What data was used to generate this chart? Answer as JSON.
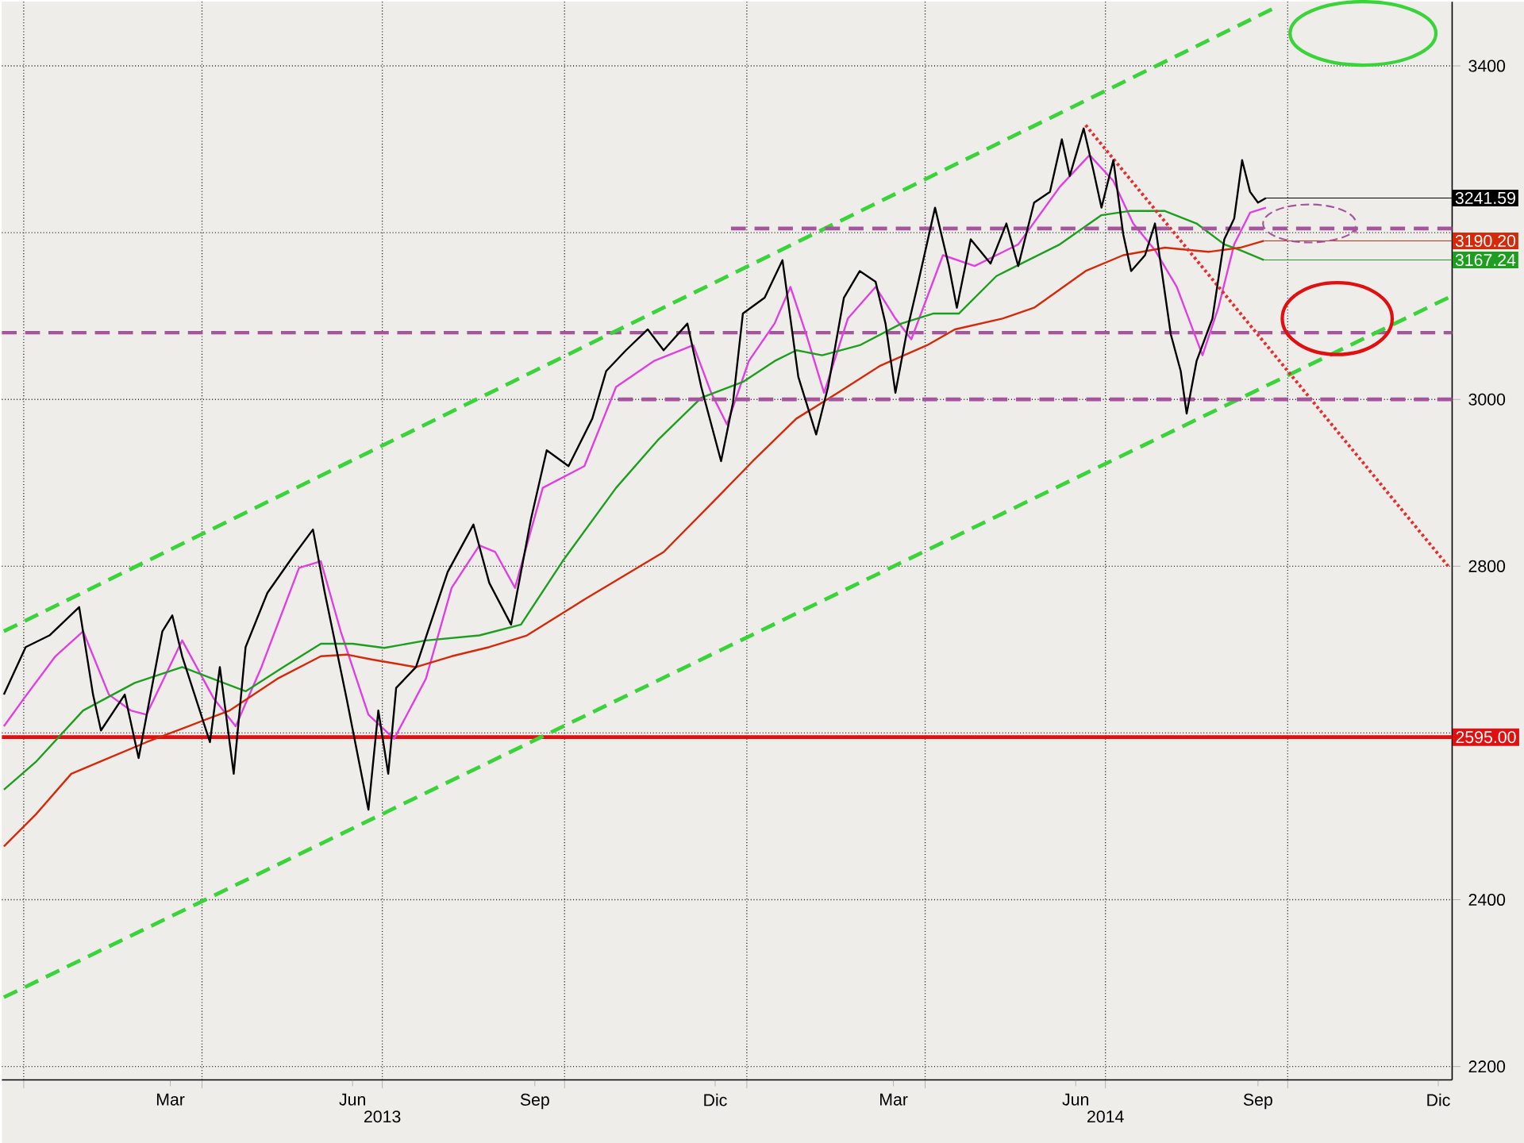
{
  "chart_data": {
    "type": "line",
    "xlim": [
      "2012-12-21",
      "2014-12-23"
    ],
    "ylim": [
      2184,
      3477
    ],
    "xticks": [
      {
        "value": "2013-01-01",
        "label": null
      },
      {
        "value": "2013-04-01",
        "label": null
      },
      {
        "value": "2013-07-01",
        "label": null
      },
      {
        "value": "2013-10-01",
        "label": null
      },
      {
        "value": "2014-01-01",
        "label": null
      },
      {
        "value": "2014-04-01",
        "label": null
      },
      {
        "value": "2014-07-01",
        "label": null
      },
      {
        "value": "2014-10-01",
        "label": null
      },
      {
        "value": "2013-03-16",
        "label": "Mar"
      },
      {
        "value": "2013-06-16",
        "label": "Jun"
      },
      {
        "value": "2013-09-16",
        "label": "Sep"
      },
      {
        "value": "2013-12-16",
        "label": "Dic"
      },
      {
        "value": "2014-03-16",
        "label": "Mar"
      },
      {
        "value": "2014-06-16",
        "label": "Jun"
      },
      {
        "value": "2014-09-16",
        "label": "Sep"
      },
      {
        "value": "2014-12-16",
        "label": "Dic"
      }
    ],
    "x2lim": [
      "2012-12-21",
      "2014-12-23"
    ],
    "x2ticks": [
      {
        "value": "2013-07-01",
        "label": "2013"
      },
      {
        "value": "2014-07-01",
        "label": "2014"
      }
    ],
    "yticks": [
      2200,
      2400,
      {
        "value": 2600,
        "label": null
      },
      2800,
      3000,
      {
        "value": 3200,
        "label": null
      },
      3400
    ],
    "grid": true,
    "series": [
      {
        "color": "#000000",
        "value_labels": [
          null,
          null,
          null,
          null,
          null,
          null,
          null,
          null,
          null,
          null,
          null,
          null,
          null,
          null,
          null,
          null,
          null,
          null,
          null,
          null,
          null,
          null,
          null,
          null,
          null,
          null,
          null,
          null,
          null,
          null,
          null,
          null,
          null,
          null,
          null,
          null,
          null,
          null,
          null,
          null,
          null,
          null,
          null,
          null,
          null,
          null,
          null,
          null,
          null,
          null,
          null,
          null,
          null,
          null,
          null,
          null,
          null,
          null,
          null,
          null,
          null,
          null,
          null,
          null,
          null,
          null,
          null,
          null,
          null,
          null,
          null,
          null,
          null,
          null,
          null,
          null,
          null,
          null,
          null,
          null,
          null,
          null,
          null,
          "3241.59"
        ],
        "x": [
          "2012-12-22",
          "2013-01-02",
          "2013-01-14",
          "2013-01-29",
          "2013-02-05",
          "2013-02-09",
          "2013-02-21",
          "2013-02-28",
          "2013-03-12",
          "2013-03-17",
          "2013-03-22",
          "2013-04-05",
          "2013-04-10",
          "2013-04-17",
          "2013-04-23",
          "2013-05-04",
          "2013-05-17",
          "2013-05-27",
          "2013-06-02",
          "2013-06-13",
          "2013-06-24",
          "2013-06-29",
          "2013-07-04",
          "2013-07-08",
          "2013-07-18",
          "2013-08-03",
          "2013-08-16",
          "2013-08-24",
          "2013-09-04",
          "2013-09-14",
          "2013-09-22",
          "2013-10-03",
          "2013-10-15",
          "2013-10-22",
          "2013-11-01",
          "2013-11-12",
          "2013-11-20",
          "2013-12-02",
          "2013-12-09",
          "2013-12-19",
          "2013-12-25",
          "2013-12-30",
          "2014-01-10",
          "2014-01-19",
          "2014-01-27",
          "2014-02-05",
          "2014-02-11",
          "2014-02-19",
          "2014-02-27",
          "2014-03-07",
          "2014-03-12",
          "2014-03-17",
          "2014-03-23",
          "2014-03-28",
          "2014-04-06",
          "2014-04-13",
          "2014-04-17",
          "2014-04-24",
          "2014-05-04",
          "2014-05-12",
          "2014-05-18",
          "2014-05-26",
          "2014-06-03",
          "2014-06-09",
          "2014-06-13",
          "2014-06-20",
          "2014-06-25",
          "2014-06-29",
          "2014-07-05",
          "2014-07-10",
          "2014-07-14",
          "2014-07-21",
          "2014-07-26",
          "2014-08-03",
          "2014-08-08",
          "2014-08-11",
          "2014-08-16",
          "2014-08-24",
          "2014-08-30",
          "2014-09-04",
          "2014-09-08",
          "2014-09-12",
          "2014-09-16",
          "2014-09-20"
        ],
        "values": [
          2646,
          2703,
          2717,
          2751,
          2646,
          2603,
          2646,
          2570,
          2722,
          2741,
          2692,
          2589,
          2679,
          2551,
          2703,
          2768,
          2812,
          2844,
          2768,
          2641,
          2508,
          2627,
          2551,
          2654,
          2679,
          2793,
          2850,
          2780,
          2730,
          2856,
          2939,
          2920,
          2977,
          3034,
          3059,
          3084,
          3059,
          3091,
          3015,
          2926,
          2996,
          3103,
          3122,
          3167,
          3027,
          2958,
          3015,
          3122,
          3154,
          3141,
          3091,
          3008,
          3084,
          3135,
          3230,
          3160,
          3110,
          3192,
          3163,
          3211,
          3160,
          3236,
          3249,
          3312,
          3268,
          3325,
          3274,
          3230,
          3287,
          3198,
          3154,
          3173,
          3211,
          3078,
          3034,
          2983,
          3046,
          3097,
          3192,
          3217,
          3287,
          3249,
          3236,
          3241.59
        ]
      },
      {
        "color": "#e040e0",
        "x": [
          "2012-12-22",
          "2013-01-01",
          "2013-01-17",
          "2013-01-31",
          "2013-02-13",
          "2013-02-24",
          "2013-03-04",
          "2013-03-22",
          "2013-04-07",
          "2013-04-18",
          "2013-05-01",
          "2013-05-20",
          "2013-05-31",
          "2013-06-10",
          "2013-06-24",
          "2013-07-07",
          "2013-07-23",
          "2013-08-05",
          "2013-08-19",
          "2013-08-27",
          "2013-09-06",
          "2013-09-20",
          "2013-10-11",
          "2013-10-27",
          "2013-11-15",
          "2013-12-05",
          "2013-12-14",
          "2013-12-22",
          "2014-01-02",
          "2014-01-15",
          "2014-01-23",
          "2014-01-31",
          "2014-02-09",
          "2014-02-21",
          "2014-03-07",
          "2014-03-17",
          "2014-03-25",
          "2014-04-10",
          "2014-04-26",
          "2014-05-18",
          "2014-06-08",
          "2014-06-23",
          "2014-07-05",
          "2014-07-15",
          "2014-07-26",
          "2014-08-06",
          "2014-08-19",
          "2014-08-27",
          "2014-09-04",
          "2014-09-12",
          "2014-09-20"
        ],
        "values": [
          2608,
          2641,
          2692,
          2722,
          2646,
          2627,
          2622,
          2711,
          2641,
          2608,
          2679,
          2798,
          2806,
          2722,
          2622,
          2593,
          2665,
          2774,
          2825,
          2817,
          2774,
          2894,
          2920,
          3015,
          3046,
          3065,
          3008,
          2970,
          3046,
          3091,
          3135,
          3078,
          3008,
          3097,
          3135,
          3097,
          3072,
          3173,
          3160,
          3186,
          3255,
          3293,
          3262,
          3211,
          3179,
          3135,
          3053,
          3110,
          3186,
          3224,
          3230
        ]
      },
      {
        "color": "#1e9e1e",
        "value_labels": [
          null,
          null,
          null,
          null,
          null,
          null,
          null,
          null,
          null,
          null,
          null,
          null,
          null,
          null,
          null,
          null,
          null,
          null,
          null,
          null,
          null,
          null,
          null,
          null,
          null,
          null,
          null,
          null,
          null,
          null,
          null,
          null,
          null,
          "3167.24"
        ],
        "x": [
          "2012-12-22",
          "2013-01-07",
          "2013-01-31",
          "2013-02-26",
          "2013-03-22",
          "2013-04-23",
          "2013-05-12",
          "2013-05-31",
          "2013-06-16",
          "2013-07-02",
          "2013-07-23",
          "2013-08-19",
          "2013-09-09",
          "2013-09-30",
          "2013-10-27",
          "2013-11-17",
          "2013-12-09",
          "2013-12-30",
          "2014-01-15",
          "2014-01-26",
          "2014-02-08",
          "2014-02-27",
          "2014-03-20",
          "2014-04-05",
          "2014-04-18",
          "2014-05-07",
          "2014-06-08",
          "2014-06-29",
          "2014-07-13",
          "2014-07-31",
          "2014-08-16",
          "2014-08-30",
          "2014-09-07",
          "2014-09-19"
        ],
        "values": [
          2532,
          2565,
          2627,
          2660,
          2679,
          2650,
          2679,
          2707,
          2707,
          2702,
          2711,
          2717,
          2730,
          2806,
          2894,
          2951,
          3002,
          3021,
          3046,
          3059,
          3053,
          3065,
          3091,
          3103,
          3103,
          3148,
          3186,
          3221,
          3226,
          3226,
          3211,
          3186,
          3179,
          3167.24
        ]
      },
      {
        "color": "#d42a0a",
        "value_labels": [
          null,
          null,
          null,
          null,
          null,
          null,
          null,
          null,
          null,
          null,
          null,
          null,
          null,
          null,
          null,
          null,
          null,
          null,
          null,
          null,
          null,
          null,
          null,
          null,
          null,
          null,
          null,
          null,
          null,
          null,
          null,
          "3190.20"
        ],
        "x": [
          "2012-12-22",
          "2013-01-07",
          "2013-01-25",
          "2013-02-13",
          "2013-03-04",
          "2013-03-25",
          "2013-04-15",
          "2013-05-09",
          "2013-05-31",
          "2013-06-13",
          "2013-06-26",
          "2013-07-18",
          "2013-08-05",
          "2013-08-24",
          "2013-09-12",
          "2013-10-11",
          "2013-11-20",
          "2013-12-17",
          "2014-01-04",
          "2014-01-26",
          "2014-02-16",
          "2014-03-09",
          "2014-04-02",
          "2014-04-16",
          "2014-05-10",
          "2014-05-26",
          "2014-06-21",
          "2014-07-10",
          "2014-07-31",
          "2014-08-22",
          "2014-09-07",
          "2014-09-19"
        ],
        "values": [
          2464,
          2502,
          2551,
          2570,
          2589,
          2608,
          2627,
          2665,
          2692,
          2694,
          2688,
          2679,
          2692,
          2703,
          2717,
          2760,
          2817,
          2882,
          2926,
          2977,
          3008,
          3040,
          3065,
          3084,
          3097,
          3110,
          3154,
          3173,
          3182,
          3177,
          3182,
          3190.2
        ]
      },
      {
        "color": "#3ad43a",
        "line_style": "dashed",
        "x": [
          "2012-12-22",
          "2014-09-23"
        ],
        "values": [
          2722,
          3468
        ]
      },
      {
        "color": "#3ad43a",
        "line_style": "dashed",
        "x": [
          "2012-12-22",
          "2014-12-21"
        ],
        "values": [
          2283,
          3122
        ]
      },
      {
        "color": "#e03030",
        "line_style": "dotted",
        "x": [
          "2014-06-21",
          "2014-12-21"
        ],
        "values": [
          3329,
          2800
        ]
      },
      {
        "color": "#a4559c",
        "line_style": "dashed",
        "x": [
          "2013-12-24",
          "2014-12-23"
        ],
        "values": [
          3205,
          3205
        ]
      },
      {
        "color": "#a4559c",
        "line_style": "dashed",
        "x": [
          "2013-10-28",
          "2014-12-23"
        ],
        "values": [
          3000,
          3000
        ]
      }
    ],
    "ref_lines": [
      {
        "axis": "y",
        "value": 2595,
        "label": "2595.00",
        "color": "#e01010"
      },
      {
        "axis": "y",
        "value": 3080,
        "color": "#a4559c",
        "line_style": "dashed"
      }
    ]
  }
}
